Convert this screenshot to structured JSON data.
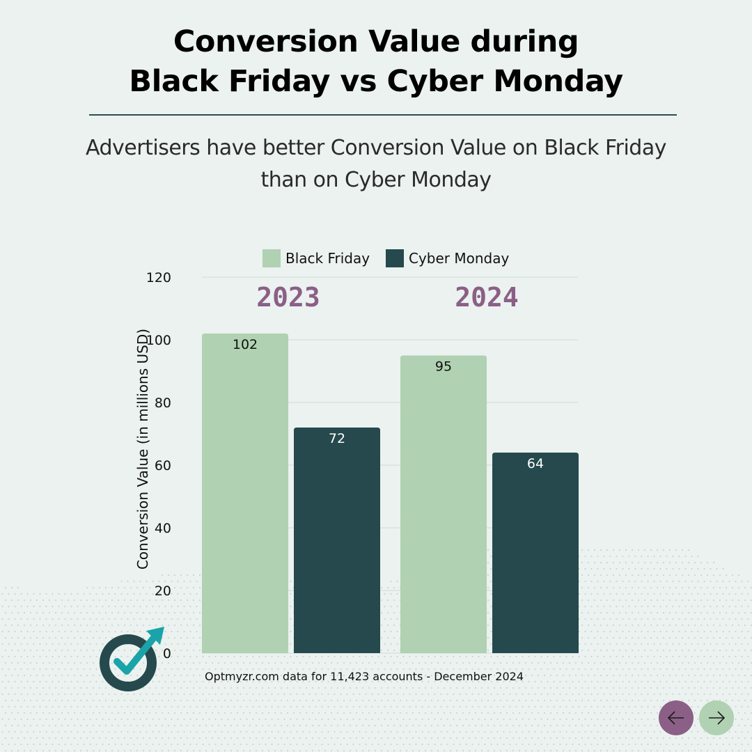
{
  "header": {
    "title_line1": "Conversion Value during",
    "title_line2": "Black Friday vs Cyber Monday",
    "subtitle_line1": "Advertisers have better Conversion Value on Black Friday",
    "subtitle_line2": "than on Cyber Monday"
  },
  "footer": {
    "source": "Optmyzr.com data for 11,423 accounts - December 2024"
  },
  "navigation": {
    "prev_icon": "arrow-left-icon",
    "next_icon": "arrow-right-icon"
  },
  "logo": {
    "icon": "optmyzr-logo-icon"
  },
  "colors": {
    "background": "#ebf2f0",
    "black_friday": "#b0d1b2",
    "cyber_monday": "#25494d",
    "year_label": "#8b5f86",
    "prev_button": "#8b5f86",
    "next_button": "#b0d1b2"
  },
  "chart_data": {
    "type": "bar",
    "title": "",
    "xlabel": "",
    "ylabel": "Conversion Value (in millions USD)",
    "categories": [
      "2023",
      "2024"
    ],
    "series": [
      {
        "name": "Black Friday",
        "values": [
          102,
          95
        ],
        "labels": [
          "102",
          "95"
        ]
      },
      {
        "name": "Cyber Monday",
        "values": [
          72,
          64
        ],
        "labels": [
          "72",
          "64"
        ]
      }
    ],
    "ylim": [
      0,
      120
    ],
    "yticks": [
      0,
      20,
      40,
      60,
      80,
      100,
      120
    ],
    "grid": true,
    "legend": "top-center"
  }
}
